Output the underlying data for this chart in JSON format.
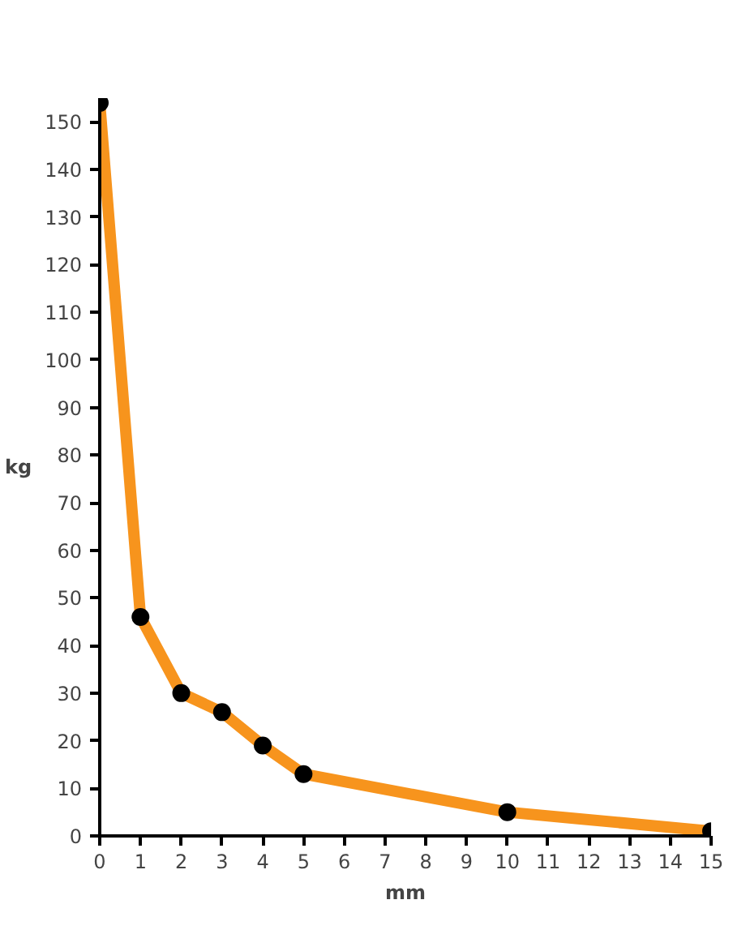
{
  "chart_data": {
    "type": "line",
    "xlabel": "mm",
    "ylabel": "kg",
    "x": [
      0,
      1,
      2,
      3,
      4,
      5,
      10,
      15
    ],
    "series": [
      {
        "color": "#f7941d",
        "values": [
          154,
          46,
          30,
          26,
          19,
          13,
          5,
          1
        ]
      }
    ],
    "xlim": [
      0,
      15
    ],
    "xticks": [
      0,
      1,
      2,
      3,
      4,
      5,
      6,
      7,
      8,
      9,
      10,
      11,
      12,
      13,
      14,
      15
    ],
    "ylim": [
      0,
      155
    ],
    "yticks": [
      0,
      10,
      20,
      30,
      40,
      50,
      60,
      70,
      80,
      90,
      100,
      110,
      120,
      130,
      140,
      150
    ],
    "grid": false,
    "marker": "circle",
    "line_style": "solid"
  }
}
